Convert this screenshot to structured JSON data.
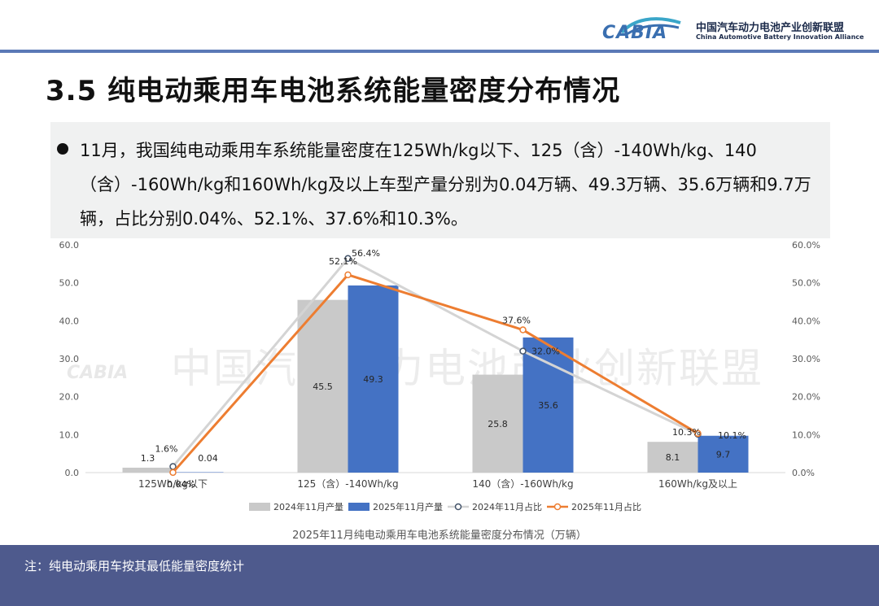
{
  "header": {
    "logo_word": "CABIA",
    "org_name_cn": "中国汽车动力电池产业创新联盟",
    "org_name_en": "China Automotive Battery Innovation Alliance"
  },
  "title": "3.5 纯电动乘用车电池系统能量密度分布情况",
  "summary": "11月，我国纯电动乘用车系统能量密度在125Wh/kg以下、125（含）-140Wh/kg、140（含）-160Wh/kg和160Wh/kg及以上车型产量分别为0.04万辆、49.3万辆、35.6万辆和9.7万辆，占比分别0.04%、52.1%、37.6%和10.3%。",
  "watermark": "中国汽车动力电池产业创新联盟",
  "colors": {
    "bar2024": "#c9c9c9",
    "bar2025": "#4472c4",
    "line2024": "#d4d4d4",
    "line2025": "#ed7d31",
    "footer": "#4e5a8d",
    "header_rule": "#5b79b6"
  },
  "chart_data": {
    "type": "bar",
    "title": "2025年11月纯电动乘用车电池系统能量密度分布情况（万辆）",
    "categories": [
      "125Wh/kg以下",
      "125（含）-140Wh/kg",
      "140（含）-160Wh/kg",
      "160Wh/kg及以上"
    ],
    "series": [
      {
        "name": "2024年11月产量",
        "kind": "bar",
        "axis": "left",
        "values": [
          1.3,
          45.5,
          25.8,
          8.1
        ],
        "labels": [
          "1.3",
          "45.5",
          "25.8",
          "8.1"
        ]
      },
      {
        "name": "2025年11月产量",
        "kind": "bar",
        "axis": "left",
        "values": [
          0.04,
          49.3,
          35.6,
          9.7
        ],
        "labels": [
          "0.04",
          "49.3",
          "35.6",
          "9.7"
        ]
      },
      {
        "name": "2024年11月占比",
        "kind": "line",
        "axis": "right",
        "values": [
          1.6,
          56.4,
          32.0,
          10.1
        ],
        "labels": [
          "1.6%",
          "56.4%",
          "32.0%",
          "10.1%"
        ]
      },
      {
        "name": "2025年11月占比",
        "kind": "line",
        "axis": "right",
        "values": [
          0.04,
          52.1,
          37.6,
          10.3
        ],
        "labels": [
          "0.04%",
          "52.1%",
          "37.6%",
          "10.3%"
        ]
      }
    ],
    "y_left": {
      "min": 0,
      "max": 60,
      "ticks": [
        "0.0",
        "10.0",
        "20.0",
        "30.0",
        "40.0",
        "50.0",
        "60.0"
      ]
    },
    "y_right": {
      "min": 0,
      "max": 60,
      "ticks": [
        "0.0%",
        "10.0%",
        "20.0%",
        "30.0%",
        "40.0%",
        "50.0%",
        "60.0%"
      ]
    },
    "grid": false,
    "legend_position": "bottom"
  },
  "footer": {
    "note": "注：纯电动乘用车按其最低能量密度统计"
  }
}
